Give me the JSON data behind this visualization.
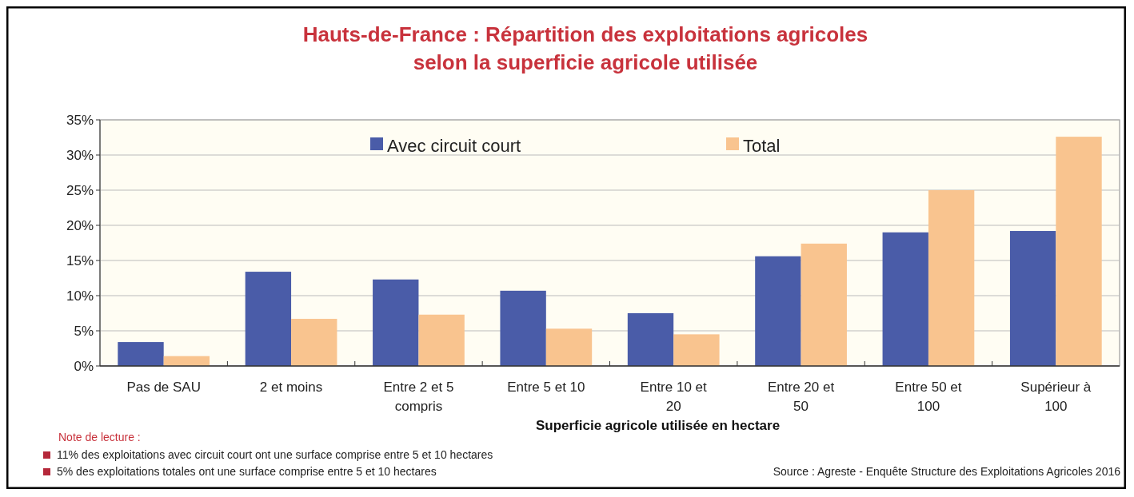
{
  "chart_data": {
    "type": "bar",
    "title": "Hauts-de-France : Répartition des exploitations agricoles\nselon la superficie agricole utilisée",
    "xlabel": "Superficie agricole utilisée en hectare",
    "categories": [
      "Pas de SAU",
      "2 et moins",
      "Entre 2 et 5 compris",
      "Entre 5 et 10",
      "Entre 10 et 20",
      "Entre 20 et 50",
      "Entre 50 et 100",
      "Supérieur à 100"
    ],
    "series": [
      {
        "name": "Avec circuit court",
        "color": "#4a5ca8",
        "values": [
          3.4,
          13.4,
          12.3,
          10.7,
          7.5,
          15.6,
          19.0,
          19.2
        ]
      },
      {
        "name": "Total",
        "color": "#f9c48f",
        "values": [
          1.4,
          6.7,
          7.3,
          5.3,
          4.5,
          17.4,
          25.0,
          32.6
        ]
      }
    ],
    "ylim": [
      0,
      35
    ],
    "yticks": [
      {
        "value": 0,
        "label": "0%"
      },
      {
        "value": 5,
        "label": "5%"
      },
      {
        "value": 10,
        "label": "10%"
      },
      {
        "value": 15,
        "label": "15%"
      },
      {
        "value": 20,
        "label": "20%"
      },
      {
        "value": 25,
        "label": "25%"
      },
      {
        "value": 30,
        "label": "30%"
      },
      {
        "value": 35,
        "label": "35%"
      }
    ],
    "grid": "y",
    "legend": "top",
    "annotations": [
      "Note de lecture :",
      "11% des exploitations avec circuit court ont une surface comprise entre 5 et 10 hectares",
      "5% des exploitations totales ont une surface comprise entre 5 et 10 hectares",
      "Source : Agreste - Enquête Structure des Exploitations Agricoles 2016"
    ]
  }
}
